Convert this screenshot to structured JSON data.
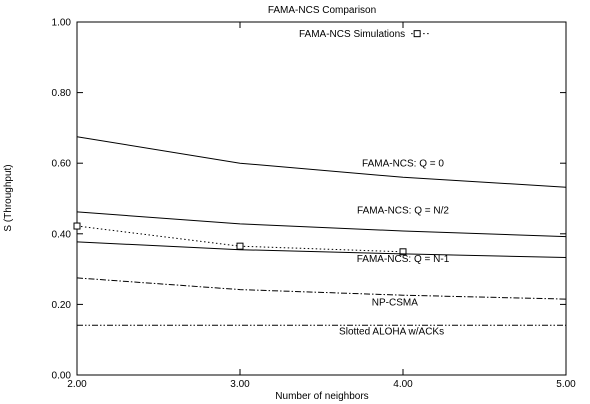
{
  "chart_data": {
    "type": "line",
    "title": "FAMA-NCS Comparison",
    "xlabel": "Number of neighbors",
    "ylabel": "S (Throughput)",
    "xlim": [
      2.0,
      5.0
    ],
    "ylim": [
      0.0,
      1.0
    ],
    "xticks": [
      2.0,
      3.0,
      4.0,
      5.0
    ],
    "yticks": [
      0.0,
      0.2,
      0.4,
      0.6,
      0.8,
      1.0
    ],
    "xtick_labels": [
      "2.00",
      "3.00",
      "4.00",
      "5.00"
    ],
    "ytick_labels": [
      "0.00",
      "0.20",
      "0.40",
      "0.60",
      "0.80",
      "1.00"
    ],
    "grid": false,
    "legend_position": "top-right",
    "series": [
      {
        "name": "FAMA-NCS Simulations",
        "style": "dotted",
        "marker": "square",
        "x": [
          2.0,
          3.0,
          4.0
        ],
        "y": [
          0.422,
          0.365,
          0.349
        ]
      },
      {
        "name": "FAMA-NCS: Q = 0",
        "style": "solid",
        "x": [
          2.0,
          3.0,
          4.0,
          5.0
        ],
        "y": [
          0.675,
          0.6,
          0.56,
          0.532
        ]
      },
      {
        "name": "FAMA-NCS: Q = N/2",
        "style": "solid",
        "x": [
          2.0,
          3.0,
          4.0,
          5.0
        ],
        "y": [
          0.462,
          0.428,
          0.408,
          0.392
        ]
      },
      {
        "name": "FAMA-NCS: Q = N-1",
        "style": "solid",
        "x": [
          2.0,
          3.0,
          4.0,
          5.0
        ],
        "y": [
          0.377,
          0.355,
          0.343,
          0.333
        ]
      },
      {
        "name": "NP-CSMA",
        "style": "dashdot",
        "x": [
          2.0,
          3.0,
          4.0,
          5.0
        ],
        "y": [
          0.275,
          0.242,
          0.226,
          0.215
        ]
      },
      {
        "name": "Slotted ALOHA w/ACKs",
        "style": "dashdotdot",
        "x": [
          2.0,
          3.0,
          4.0,
          5.0
        ],
        "y": [
          0.141,
          0.141,
          0.141,
          0.141
        ]
      }
    ],
    "annotations": [
      {
        "text": "FAMA-NCS: Q = 0",
        "x": 4.0,
        "y": 0.6
      },
      {
        "text": "FAMA-NCS: Q = N/2",
        "x": 4.0,
        "y": 0.467
      },
      {
        "text": "FAMA-NCS: Q = N-1",
        "x": 4.0,
        "y": 0.33
      },
      {
        "text": "NP-CSMA",
        "x": 3.95,
        "y": 0.207
      },
      {
        "text": "Slotted ALOHA w/ACKs",
        "x": 3.93,
        "y": 0.125
      }
    ],
    "legend": {
      "label": "FAMA-NCS Simulations"
    }
  }
}
